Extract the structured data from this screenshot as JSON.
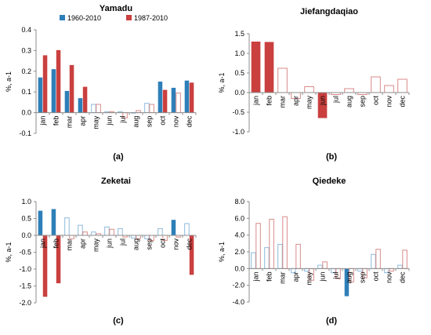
{
  "colors": {
    "blue": "#2e7fb8",
    "red": "#c9403f",
    "outline_blue": "#8db9dc",
    "outline_red": "#d98a88",
    "axis": "#8c8c8c"
  },
  "chart_data": [
    {
      "type": "bar",
      "title": "Yamadu",
      "panel_label": "(a)",
      "ylabel": "%, a-1",
      "ylim": [
        -0.1,
        0.4
      ],
      "yticks": [
        "-0.1",
        "0.0",
        "0.1",
        "0.2",
        "0.3",
        "0.4"
      ],
      "categories": [
        "jan",
        "feb",
        "mar",
        "apr",
        "may",
        "jun",
        "jul",
        "aug",
        "sep",
        "oct",
        "nov",
        "dec"
      ],
      "legend": "top-left",
      "series": [
        {
          "name": "1960-2010",
          "color": "blue",
          "values": [
            0.17,
            0.21,
            0.105,
            0.07,
            0.04,
            0.005,
            0.005,
            0.0,
            0.045,
            0.15,
            0.12,
            0.155
          ],
          "significant": [
            true,
            true,
            true,
            true,
            false,
            false,
            false,
            false,
            false,
            true,
            true,
            true
          ]
        },
        {
          "name": "1987-2010",
          "color": "red",
          "values": [
            0.277,
            0.302,
            0.23,
            0.125,
            0.04,
            0.005,
            -0.025,
            0.01,
            0.04,
            0.11,
            0.095,
            0.145
          ],
          "significant": [
            true,
            true,
            true,
            true,
            false,
            false,
            false,
            false,
            false,
            true,
            false,
            true
          ]
        }
      ]
    },
    {
      "type": "bar",
      "title": "Jiefangdaqiao",
      "panel_label": "(b)",
      "ylabel": "%, a-1",
      "ylim": [
        -1.0,
        1.5
      ],
      "yticks": [
        "-1.0",
        "-0.5",
        "0.0",
        "0.5",
        "1.0",
        "1.5"
      ],
      "categories": [
        "jan",
        "feb",
        "mar",
        "apr",
        "may",
        "jun",
        "jul",
        "aug",
        "sep",
        "oct",
        "nov",
        "dec"
      ],
      "series": [
        {
          "color": "red",
          "values": [
            1.3,
            1.29,
            0.62,
            -0.15,
            0.15,
            -0.65,
            -0.05,
            0.1,
            -0.05,
            0.4,
            0.18,
            0.34
          ],
          "significant": [
            true,
            true,
            false,
            false,
            false,
            true,
            false,
            false,
            false,
            false,
            false,
            false
          ]
        }
      ]
    },
    {
      "type": "bar",
      "title": "Zeketai",
      "panel_label": "(c)",
      "ylabel": "%, a-1",
      "ylim": [
        -2.0,
        1.0
      ],
      "yticks": [
        "-2.0",
        "-1.5",
        "-1.0",
        "-0.5",
        "0.0",
        "0.5",
        "1.0"
      ],
      "categories": [
        "jan",
        "feb",
        "mar",
        "apr",
        "may",
        "jun",
        "jul",
        "aug",
        "sep",
        "oct",
        "nov",
        "dec"
      ],
      "series": [
        {
          "color": "blue",
          "values": [
            0.73,
            0.78,
            0.52,
            0.3,
            0.1,
            0.25,
            0.2,
            -0.08,
            -0.1,
            0.2,
            0.46,
            0.35
          ],
          "significant": [
            true,
            true,
            false,
            false,
            false,
            false,
            false,
            false,
            false,
            false,
            true,
            false
          ]
        },
        {
          "color": "red",
          "values": [
            -1.82,
            -1.42,
            -0.1,
            0.1,
            0.05,
            0.18,
            -0.05,
            -0.1,
            -0.15,
            -0.15,
            -0.05,
            -1.17
          ],
          "significant": [
            true,
            true,
            false,
            false,
            false,
            false,
            false,
            false,
            false,
            false,
            false,
            true
          ]
        }
      ]
    },
    {
      "type": "bar",
      "title": "Qiedeke",
      "panel_label": "(d)",
      "ylabel": "%, a-1",
      "ylim": [
        -4.0,
        8.0
      ],
      "yticks": [
        "-4.0",
        "-2.0",
        "0.0",
        "2.0",
        "4.0",
        "6.0",
        "8.0"
      ],
      "categories": [
        "jan",
        "feb",
        "mar",
        "apr",
        "may",
        "jun",
        "jul",
        "aug",
        "sep",
        "oct",
        "nov",
        "dec"
      ],
      "series": [
        {
          "color": "blue",
          "values": [
            1.9,
            2.5,
            2.9,
            -0.5,
            -0.3,
            0.4,
            -0.5,
            -3.3,
            -0.3,
            1.7,
            -0.5,
            0.4
          ],
          "significant": [
            false,
            false,
            false,
            false,
            false,
            false,
            false,
            true,
            false,
            false,
            false,
            false
          ]
        },
        {
          "color": "red",
          "values": [
            5.4,
            5.9,
            6.2,
            2.9,
            -1.4,
            0.8,
            -1.2,
            -1.6,
            -1.1,
            2.3,
            -0.3,
            2.2
          ],
          "significant": [
            false,
            false,
            false,
            false,
            false,
            false,
            false,
            false,
            false,
            false,
            false,
            false
          ]
        }
      ]
    }
  ]
}
